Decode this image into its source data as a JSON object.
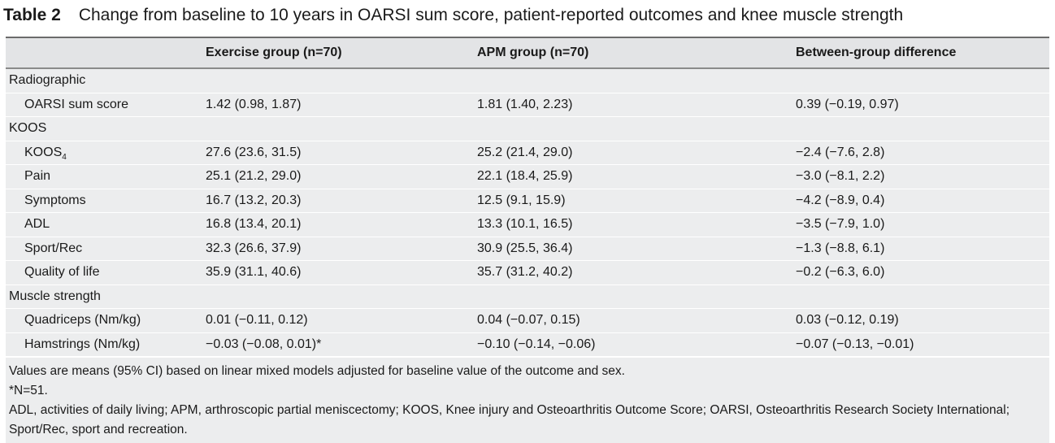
{
  "caption": {
    "label": "Table 2",
    "title": "Change from baseline to 10 years in OARSI sum score, patient-reported outcomes and knee muscle strength"
  },
  "header": {
    "col1": "",
    "col2": "Exercise group (n=70)",
    "col3": "APM group (n=70)",
    "col4": "Between-group difference"
  },
  "groups": {
    "radiographic": "Radiographic",
    "koos": "KOOS",
    "muscle": "Muscle strength"
  },
  "rows": {
    "oarsi": {
      "label": "OARSI sum score",
      "exercise": "1.42 (0.98, 1.87)",
      "apm": "1.81 (1.40, 2.23)",
      "diff": "0.39 (−0.19, 0.97)"
    },
    "koos4": {
      "label": "KOOS",
      "label_sub": "4",
      "exercise": "27.6 (23.6, 31.5)",
      "apm": "25.2 (21.4, 29.0)",
      "diff": "−2.4 (−7.6, 2.8)"
    },
    "pain": {
      "label": "Pain",
      "exercise": "25.1 (21.2, 29.0)",
      "apm": "22.1 (18.4, 25.9)",
      "diff": "−3.0 (−8.1, 2.2)"
    },
    "symptoms": {
      "label": "Symptoms",
      "exercise": "16.7 (13.2, 20.3)",
      "apm": "12.5 (9.1, 15.9)",
      "diff": "−4.2 (−8.9, 0.4)"
    },
    "adl": {
      "label": "ADL",
      "exercise": "16.8 (13.4, 20.1)",
      "apm": "13.3 (10.1, 16.5)",
      "diff": "−3.5 (−7.9, 1.0)"
    },
    "sport": {
      "label": "Sport/Rec",
      "exercise": "32.3 (26.6, 37.9)",
      "apm": "30.9 (25.5, 36.4)",
      "diff": "−1.3 (−8.8, 6.1)"
    },
    "qol": {
      "label": "Quality of life",
      "exercise": "35.9 (31.1, 40.6)",
      "apm": "35.7 (31.2, 40.2)",
      "diff": "−0.2 (−6.3, 6.0)"
    },
    "quad": {
      "label": "Quadriceps (Nm/kg)",
      "exercise": "0.01 (−0.11, 0.12)",
      "apm": "0.04 (−0.07, 0.15)",
      "diff": "0.03 (−0.12, 0.19)"
    },
    "ham": {
      "label": "Hamstrings (Nm/kg)",
      "exercise": "−0.03 (−0.08, 0.01)*",
      "apm": "−0.10 (−0.14, −0.06)",
      "diff": "−0.07 (−0.13, −0.01)"
    }
  },
  "footnotes": {
    "note1": "Values are means (95% CI) based on linear mixed models adjusted for baseline value of the outcome and sex.",
    "note2": "*N=51.",
    "note3": "ADL, activities of daily living; APM, arthroscopic partial meniscectomy; KOOS, Knee injury and Osteoarthritis Outcome Score; OARSI, Osteoarthritis Research Society International; Sport/Rec, sport and recreation."
  },
  "colors": {
    "table_background": "#ecedee",
    "header_background": "#e3e4e6",
    "rule": "#6b6b6b"
  }
}
